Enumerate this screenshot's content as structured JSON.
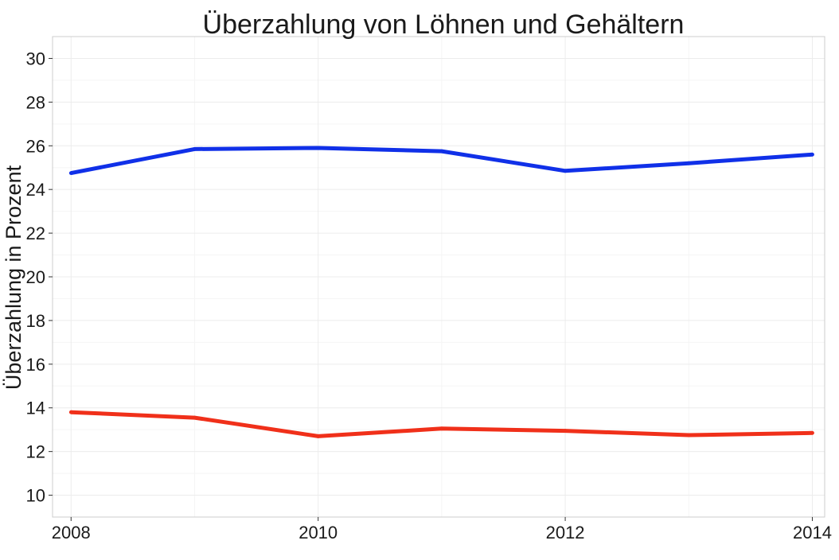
{
  "chart_data": {
    "type": "line",
    "title": "Überzahlung von Löhnen und Gehältern",
    "ylabel": "Überzahlung in Prozent",
    "xlabel": "",
    "x": [
      2008,
      2009,
      2010,
      2011,
      2012,
      2013,
      2014
    ],
    "x_ticks": [
      2008,
      2010,
      2012,
      2014
    ],
    "x_tick_labels": [
      "2008",
      "2010",
      "2012",
      "2014"
    ],
    "y_ticks": [
      10,
      12,
      14,
      16,
      18,
      20,
      22,
      24,
      26,
      28,
      30
    ],
    "y_tick_labels": [
      "10",
      "12",
      "14",
      "16",
      "18",
      "20",
      "22",
      "24",
      "26",
      "28",
      "30"
    ],
    "xlim": [
      2007.85,
      2014.1
    ],
    "ylim": [
      9.0,
      31.0
    ],
    "grid": true,
    "legend": "none",
    "series": [
      {
        "color": "#1030e8",
        "values": [
          24.75,
          25.85,
          25.9,
          25.75,
          24.85,
          25.2,
          25.6
        ]
      },
      {
        "color": "#f0301a",
        "values": [
          13.8,
          13.55,
          12.7,
          13.05,
          12.95,
          12.75,
          12.85
        ]
      }
    ]
  }
}
